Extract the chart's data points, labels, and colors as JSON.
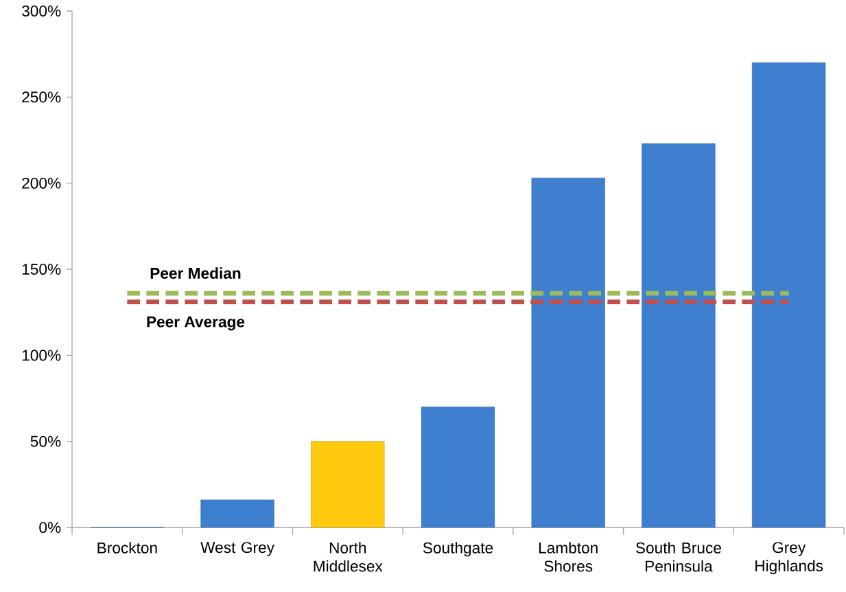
{
  "chart_data": {
    "type": "bar",
    "categories": [
      "Brockton",
      "West Grey",
      "North Middlesex",
      "Southgate",
      "Lambton Shores",
      "South Bruce Peninsula",
      "Grey Highlands"
    ],
    "values": [
      0,
      16,
      50,
      70,
      203,
      223,
      270
    ],
    "colors": [
      "#3f7fcf",
      "#3f7fcf",
      "#ffc90e",
      "#3f7fcf",
      "#3f7fcf",
      "#3f7fcf",
      "#3f7fcf"
    ],
    "ylim": [
      0,
      300
    ],
    "yticks": [
      {
        "value": 0,
        "label": "0%"
      },
      {
        "value": 50,
        "label": "50%"
      },
      {
        "value": 100,
        "label": "100%"
      },
      {
        "value": 150,
        "label": "150%"
      },
      {
        "value": 200,
        "label": "200%"
      },
      {
        "value": 250,
        "label": "250%"
      },
      {
        "value": 300,
        "label": "300%"
      }
    ],
    "grid": false,
    "ref_lines": [
      {
        "axis": "y",
        "value": 136,
        "label": "Peer Median",
        "color": "#9bbb59",
        "line_style": "dashed"
      },
      {
        "axis": "y",
        "value": 131,
        "label": "Peer Average",
        "color": "#c0504d",
        "line_style": "dashed"
      }
    ]
  }
}
